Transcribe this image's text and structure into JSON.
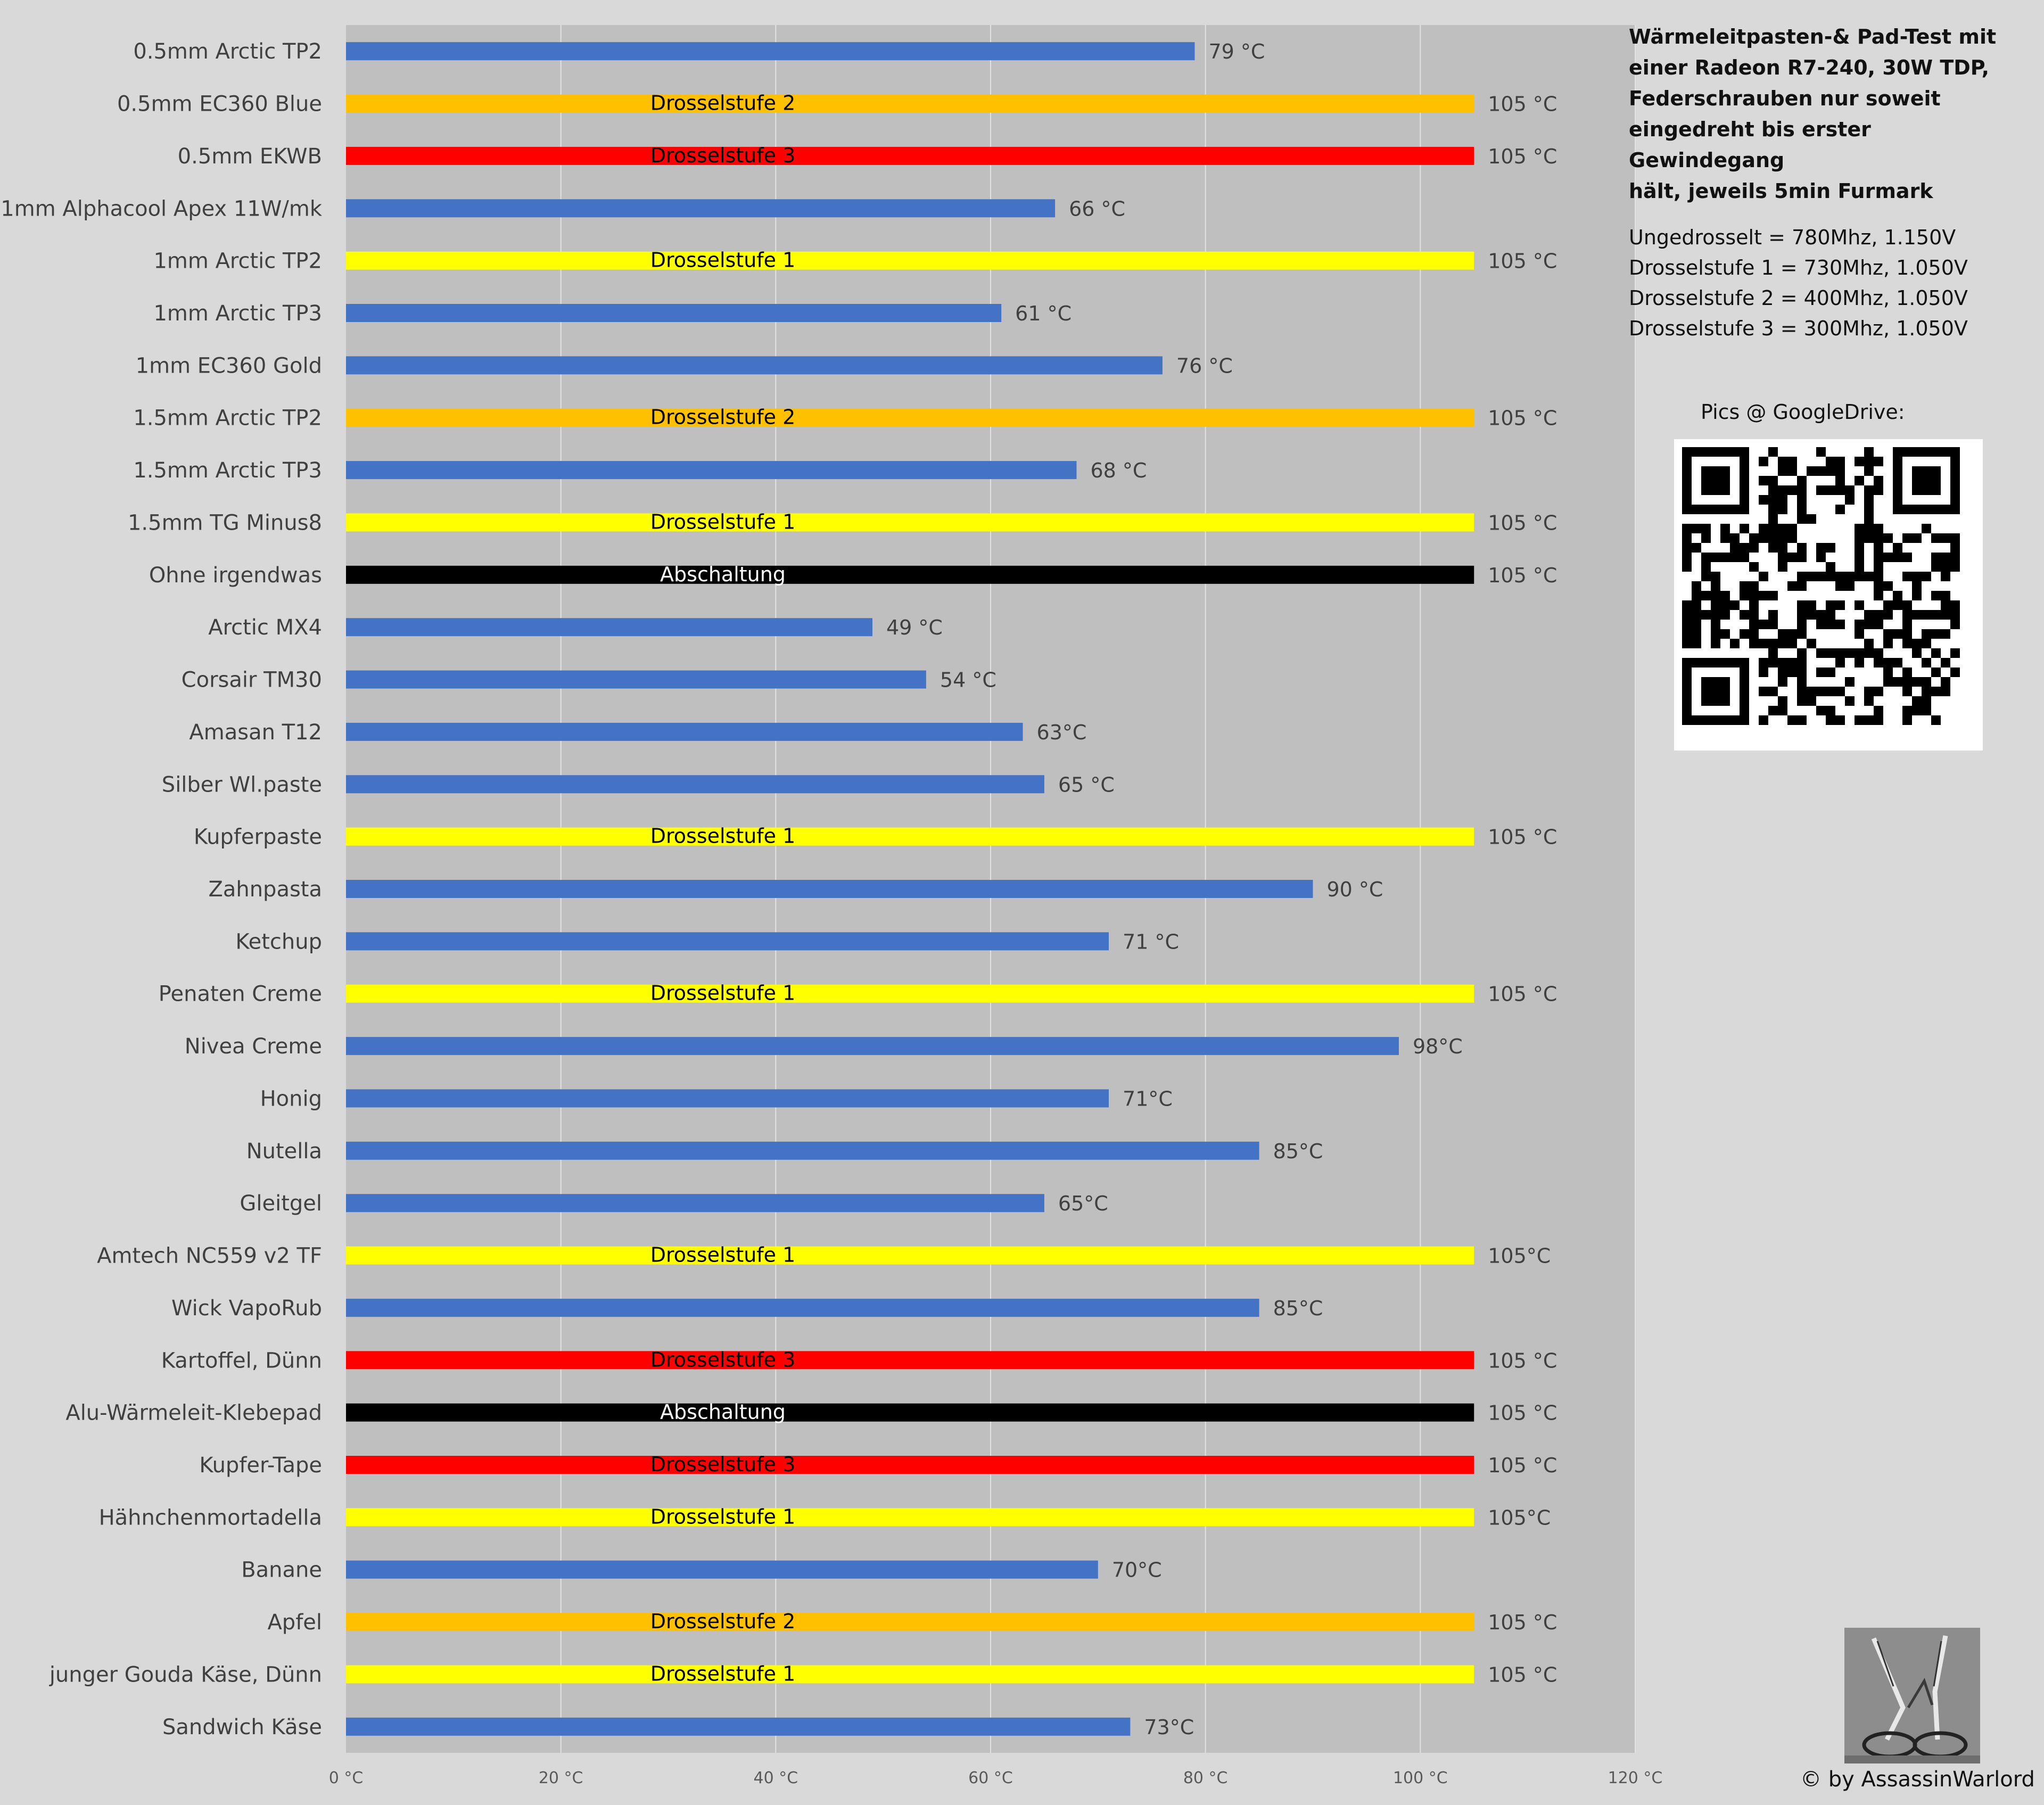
{
  "chart_data": {
    "type": "bar",
    "orientation": "horizontal",
    "xlim": [
      0,
      120
    ],
    "xticks": [
      "0 °C",
      "20 °C",
      "40 °C",
      "60 °C",
      "80 °C",
      "100 °C",
      "120 °C"
    ],
    "grid": true,
    "colors": {
      "normal": "#4472c4",
      "drossel1": "#ffff00",
      "drossel2": "#ffc000",
      "drossel3": "#ff0000",
      "abschaltung": "#000000",
      "plot_bg": "#bfbfbf"
    },
    "bars": [
      {
        "category": "0.5mm Arctic TP2",
        "value": 79,
        "label": "79 °C",
        "status": "normal",
        "inner": ""
      },
      {
        "category": "0.5mm EC360 Blue",
        "value": 105,
        "label": "105 °C",
        "status": "drossel2",
        "inner": "Drosselstufe 2"
      },
      {
        "category": "0.5mm EKWB",
        "value": 105,
        "label": "105 °C",
        "status": "drossel3",
        "inner": "Drosselstufe 3"
      },
      {
        "category": "1mm Alphacool Apex 11W/mk",
        "value": 66,
        "label": "66 °C",
        "status": "normal",
        "inner": ""
      },
      {
        "category": "1mm Arctic TP2",
        "value": 105,
        "label": "105 °C",
        "status": "drossel1",
        "inner": "Drosselstufe 1"
      },
      {
        "category": "1mm Arctic TP3",
        "value": 61,
        "label": "61 °C",
        "status": "normal",
        "inner": ""
      },
      {
        "category": "1mm EC360 Gold",
        "value": 76,
        "label": "76 °C",
        "status": "normal",
        "inner": ""
      },
      {
        "category": "1.5mm Arctic TP2",
        "value": 105,
        "label": "105 °C",
        "status": "drossel2",
        "inner": "Drosselstufe 2"
      },
      {
        "category": "1.5mm Arctic TP3",
        "value": 68,
        "label": "68 °C",
        "status": "normal",
        "inner": ""
      },
      {
        "category": "1.5mm TG Minus8",
        "value": 105,
        "label": "105 °C",
        "status": "drossel1",
        "inner": "Drosselstufe 1"
      },
      {
        "category": "Ohne irgendwas",
        "value": 105,
        "label": "105 °C",
        "status": "abschaltung",
        "inner": "Abschaltung"
      },
      {
        "category": "Arctic MX4",
        "value": 49,
        "label": "49 °C",
        "status": "normal",
        "inner": ""
      },
      {
        "category": "Corsair TM30",
        "value": 54,
        "label": "54 °C",
        "status": "normal",
        "inner": ""
      },
      {
        "category": "Amasan T12",
        "value": 63,
        "label": "63°C",
        "status": "normal",
        "inner": ""
      },
      {
        "category": "Silber Wl.paste",
        "value": 65,
        "label": "65 °C",
        "status": "normal",
        "inner": ""
      },
      {
        "category": "Kupferpaste",
        "value": 105,
        "label": "105 °C",
        "status": "drossel1",
        "inner": "Drosselstufe 1"
      },
      {
        "category": "Zahnpasta",
        "value": 90,
        "label": "90 °C",
        "status": "normal",
        "inner": ""
      },
      {
        "category": "Ketchup",
        "value": 71,
        "label": "71 °C",
        "status": "normal",
        "inner": ""
      },
      {
        "category": "Penaten Creme",
        "value": 105,
        "label": "105 °C",
        "status": "drossel1",
        "inner": "Drosselstufe 1"
      },
      {
        "category": "Nivea Creme",
        "value": 98,
        "label": "98°C",
        "status": "normal",
        "inner": ""
      },
      {
        "category": "Honig",
        "value": 71,
        "label": "71°C",
        "status": "normal",
        "inner": ""
      },
      {
        "category": "Nutella",
        "value": 85,
        "label": "85°C",
        "status": "normal",
        "inner": ""
      },
      {
        "category": "Gleitgel",
        "value": 65,
        "label": "65°C",
        "status": "normal",
        "inner": ""
      },
      {
        "category": "Amtech NC559 v2 TF",
        "value": 105,
        "label": "105°C",
        "status": "drossel1",
        "inner": "Drosselstufe 1"
      },
      {
        "category": "Wick VapoRub",
        "value": 85,
        "label": "85°C",
        "status": "normal",
        "inner": ""
      },
      {
        "category": "Kartoffel, Dünn",
        "value": 105,
        "label": "105 °C",
        "status": "drossel3",
        "inner": "Drosselstufe 3"
      },
      {
        "category": "Alu-Wärmeleit-Klebepad",
        "value": 105,
        "label": "105 °C",
        "status": "abschaltung",
        "inner": "Abschaltung"
      },
      {
        "category": "Kupfer-Tape",
        "value": 105,
        "label": "105 °C",
        "status": "drossel3",
        "inner": "Drosselstufe 3"
      },
      {
        "category": "Hähnchenmortadella",
        "value": 105,
        "label": "105°C",
        "status": "drossel1",
        "inner": "Drosselstufe 1"
      },
      {
        "category": "Banane",
        "value": 70,
        "label": "70°C",
        "status": "normal",
        "inner": ""
      },
      {
        "category": "Apfel",
        "value": 105,
        "label": "105 °C",
        "status": "drossel2",
        "inner": "Drosselstufe 2"
      },
      {
        "category": "junger Gouda Käse, Dünn",
        "value": 105,
        "label": "105 °C",
        "status": "drossel1",
        "inner": "Drosselstufe 1"
      },
      {
        "category": "Sandwich Käse",
        "value": 73,
        "label": "73°C",
        "status": "normal",
        "inner": ""
      }
    ]
  },
  "info": {
    "title": "Wärmeleitpasten-& Pad-Test mit\neiner Radeon R7-240, 30W TDP,\nFederschrauben nur soweit\neingedreht bis erster Gewindegang\nhält, jeweils 5min Furmark",
    "legend": [
      "Ungedrosselt = 780Mhz, 1.150V",
      "Drosselstufe 1 = 730Mhz, 1.050V",
      "Drosselstufe 2 = 400Mhz, 1.050V",
      "Drosselstufe 3 = 300Mhz, 1.050V"
    ],
    "pics_label": "Pics @ GoogleDrive:",
    "credit": "© by AssassinWarlord"
  },
  "images": {
    "qr": "qr-code",
    "avatar": "glasses-sketch-avatar"
  }
}
